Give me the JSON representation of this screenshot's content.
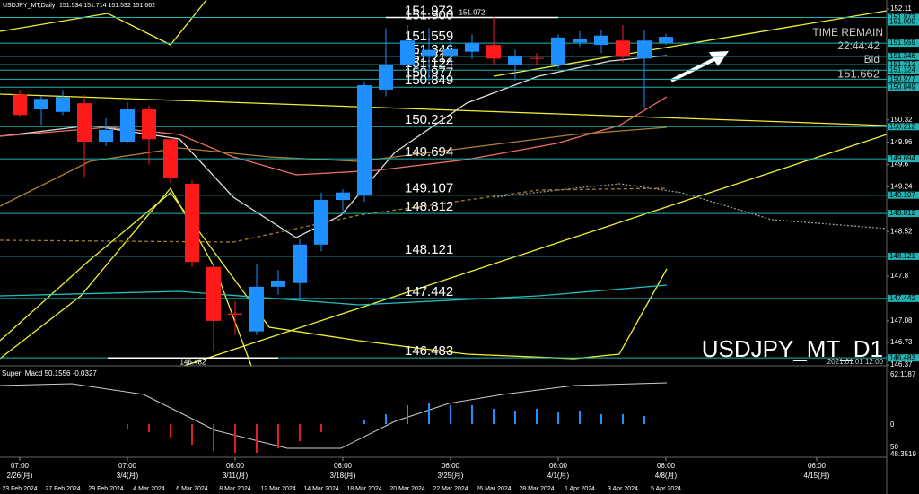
{
  "chart_data": {
    "type": "candlestick",
    "title": "USDJPY_MT,Daily",
    "ohlc_header": "151.534 151.714 151.532 151.662",
    "up_color": "#1e90ff",
    "down_color": "#ff1a1a",
    "categories": [
      "23 Feb 2024",
      null,
      "27 Feb 2024",
      null,
      "29 Feb 2024",
      null,
      "4 Mar 2024",
      null,
      "6 Mar 2024",
      null,
      "8 Mar 2024",
      null,
      "12 Mar 2024",
      null,
      "14 Mar 2024",
      null,
      "18 Mar 2024",
      null,
      "20 Mar 2024",
      null,
      "22 Mar 2024",
      null,
      "26 Mar 2024",
      null,
      "28 Mar 2024",
      null,
      "1 Apr 2024",
      null,
      "3 Apr 2024",
      null,
      "5 Apr 2024"
    ],
    "open": [
      150.73,
      150.49,
      150.45,
      150.59,
      149.97,
      149.97,
      150.49,
      150.01,
      149.29,
      147.95,
      147.2,
      146.91,
      147.63,
      147.69,
      148.31,
      149.03,
      149.1,
      150.81,
      151.21,
      151.36,
      151.36,
      151.42,
      151.53,
      151.21,
      151.32,
      151.21,
      151.57,
      151.53,
      151.6,
      151.31,
      151.56
    ],
    "high": [
      150.81,
      150.7,
      150.8,
      150.72,
      150.35,
      150.6,
      150.55,
      150.03,
      149.35,
      148.0,
      147.4,
      148.0,
      147.9,
      148.4,
      149.15,
      149.2,
      150.94,
      151.8,
      151.85,
      151.8,
      151.6,
      151.7,
      151.98,
      151.45,
      151.4,
      151.7,
      151.75,
      151.78,
      151.85,
      151.78,
      151.71
    ],
    "low": [
      150.38,
      150.24,
      150.4,
      149.4,
      149.9,
      149.95,
      149.6,
      149.3,
      147.95,
      146.6,
      146.85,
      146.85,
      147.5,
      147.4,
      148.2,
      148.85,
      149.0,
      150.7,
      151.0,
      150.95,
      151.25,
      151.3,
      151.2,
      150.95,
      151.2,
      151.15,
      151.5,
      151.4,
      151.25,
      150.5,
      151.53
    ],
    "close": [
      150.4,
      150.66,
      150.69,
      149.97,
      150.16,
      150.49,
      150.01,
      149.39,
      148.03,
      147.08,
      147.18,
      147.63,
      147.73,
      148.31,
      149.03,
      149.15,
      150.88,
      151.21,
      151.6,
      151.45,
      151.46,
      151.56,
      151.31,
      151.34,
      151.31,
      151.65,
      151.63,
      151.68,
      151.34,
      151.6,
      151.66
    ],
    "ylim": [
      146.37,
      152.11
    ],
    "yticks": [
      152.11,
      150.32,
      149.96,
      149.6,
      149.24,
      148.52,
      147.8,
      147.08,
      146.73,
      146.37
    ],
    "levels": [
      151.973,
      {
        "value": 151.9,
        "label": "151.900"
      },
      151.559,
      151.346,
      151.212,
      151.124,
      150.977,
      150.849,
      150.212,
      149.694,
      149.107,
      148.812,
      148.121,
      147.442,
      146.483
    ],
    "level_color": "#1fb3b3",
    "annotations": [
      {
        "value": 151.972,
        "label": "151.972"
      },
      {
        "value": 146.482,
        "label": "146.482"
      }
    ],
    "time_labels": [
      {
        "time": "07:00",
        "date": "2/26(月)"
      },
      {
        "time": "07:00",
        "date": "3/4(月)"
      },
      {
        "time": "06:00",
        "date": "3/11(月)"
      },
      {
        "time": "06:00",
        "date": "3/18(月)"
      },
      {
        "time": "06:00",
        "date": "3/25(月)"
      },
      {
        "time": "06:00",
        "date": "4/1(月)"
      },
      {
        "time": "06:00",
        "date": "4/8(月)"
      },
      {
        "time": "06:00",
        "date": "4/15(月)"
      }
    ],
    "info": {
      "time_remain_label": "TIME REMAIN",
      "time_remain": "22:44:42",
      "bid_label": "Bid",
      "bid": "151.662"
    },
    "watermark": "USDJPY_MT_D1",
    "watermark_date": "2021.01.01 12:00",
    "indicator": {
      "label": "Super_Macd 50.1556 -0.0327",
      "ticks": [
        "62.1187",
        "0",
        "50",
        "48.3519"
      ]
    }
  }
}
